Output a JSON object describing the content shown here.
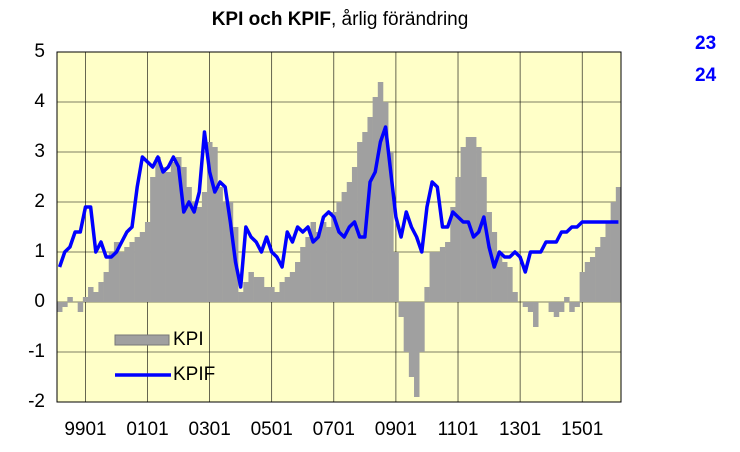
{
  "chart_data": {
    "type": "bar_line",
    "title": [
      "KPI och KPIF",
      ", årlig förändring"
    ],
    "annotations": [
      "23",
      "24"
    ],
    "categories": [
      null,
      null,
      null,
      null,
      null,
      "9901",
      null,
      null,
      null,
      null,
      null,
      null,
      null,
      null,
      null,
      null,
      null,
      "0101",
      null,
      null,
      null,
      null,
      null,
      null,
      null,
      null,
      null,
      null,
      null,
      "0301",
      null,
      null,
      null,
      null,
      null,
      null,
      null,
      null,
      null,
      null,
      null,
      "0501",
      null,
      null,
      null,
      null,
      null,
      null,
      null,
      null,
      null,
      null,
      null,
      "0701",
      null,
      null,
      null,
      null,
      null,
      null,
      null,
      null,
      null,
      null,
      null,
      "0901",
      null,
      null,
      null,
      null,
      null,
      null,
      null,
      null,
      null,
      null,
      null,
      "1101",
      null,
      null,
      null,
      null,
      null,
      null,
      null,
      null,
      null,
      null,
      null,
      "1301",
      null,
      null,
      null,
      null,
      null,
      null,
      null,
      null,
      null,
      null,
      null,
      "1501",
      null,
      null,
      null,
      null,
      null,
      null,
      null
    ],
    "series": [
      {
        "name": "KPI",
        "type": "bar",
        "color": "#a0a0a0",
        "values": [
          -0.2,
          -0.1,
          0.1,
          0.0,
          -0.2,
          0.1,
          0.3,
          0.2,
          0.4,
          0.6,
          1.0,
          1.2,
          1.0,
          1.1,
          1.2,
          1.3,
          1.4,
          1.6,
          2.5,
          2.9,
          2.7,
          2.6,
          2.8,
          2.9,
          2.7,
          2.3,
          2.0,
          1.9,
          2.2,
          3.2,
          3.1,
          2.3,
          2.0,
          2.0,
          1.5,
          0.2,
          0.4,
          0.6,
          0.5,
          0.5,
          0.3,
          0.3,
          0.2,
          0.4,
          0.5,
          0.6,
          0.8,
          1.1,
          1.3,
          1.6,
          1.4,
          1.6,
          1.5,
          1.8,
          2.0,
          2.2,
          2.4,
          2.7,
          3.2,
          3.4,
          3.7,
          4.1,
          4.4,
          4.0,
          3.0,
          1.0,
          -0.3,
          -1.0,
          -1.5,
          -1.9,
          -1.0,
          0.3,
          1.0,
          1.0,
          1.1,
          1.2,
          1.9,
          2.5,
          3.1,
          3.3,
          3.3,
          3.1,
          2.5,
          1.8,
          1.4,
          1.0,
          0.8,
          0.7,
          0.2,
          0.0,
          -0.1,
          -0.2,
          -0.5,
          0.0,
          0.0,
          -0.2,
          -0.3,
          -0.2,
          0.1,
          -0.2,
          -0.1,
          0.6,
          0.8,
          0.9,
          1.1,
          1.3,
          1.6,
          2.0,
          2.3
        ]
      },
      {
        "name": "KPIF",
        "type": "line",
        "color": "#0000ff",
        "values": [
          0.7,
          1.0,
          1.1,
          1.4,
          1.4,
          1.9,
          1.9,
          1.0,
          1.2,
          0.9,
          0.9,
          1.0,
          1.2,
          1.4,
          1.5,
          2.3,
          2.9,
          2.8,
          2.7,
          2.9,
          2.6,
          2.7,
          2.9,
          2.7,
          1.8,
          2.0,
          1.8,
          2.2,
          3.4,
          2.6,
          2.2,
          2.4,
          2.3,
          1.6,
          0.8,
          0.3,
          1.5,
          1.3,
          1.2,
          1.0,
          1.3,
          1.0,
          0.9,
          0.7,
          1.4,
          1.2,
          1.5,
          1.4,
          1.5,
          1.2,
          1.3,
          1.7,
          1.8,
          1.7,
          1.4,
          1.3,
          1.5,
          1.6,
          1.3,
          1.3,
          2.4,
          2.6,
          3.2,
          3.5,
          2.6,
          1.7,
          1.3,
          1.8,
          1.5,
          1.3,
          1.0,
          1.9,
          2.4,
          2.3,
          1.5,
          1.5,
          1.8,
          1.7,
          1.6,
          1.6,
          1.3,
          1.4,
          1.7,
          1.1,
          0.7,
          1.0,
          0.9,
          0.9,
          1.0,
          0.9,
          0.6,
          1.0,
          1.0,
          1.0,
          1.2,
          1.2,
          1.2,
          1.4,
          1.4,
          1.5,
          1.5,
          1.6,
          1.6,
          1.6,
          1.6,
          1.6,
          1.6,
          1.6,
          1.6
        ]
      }
    ],
    "ylim": [
      -2,
      5
    ],
    "yticks": [
      -2,
      -1,
      0,
      1,
      2,
      3,
      4,
      5
    ],
    "grid": true,
    "legend": "lower left",
    "background": "#ffffc8"
  }
}
